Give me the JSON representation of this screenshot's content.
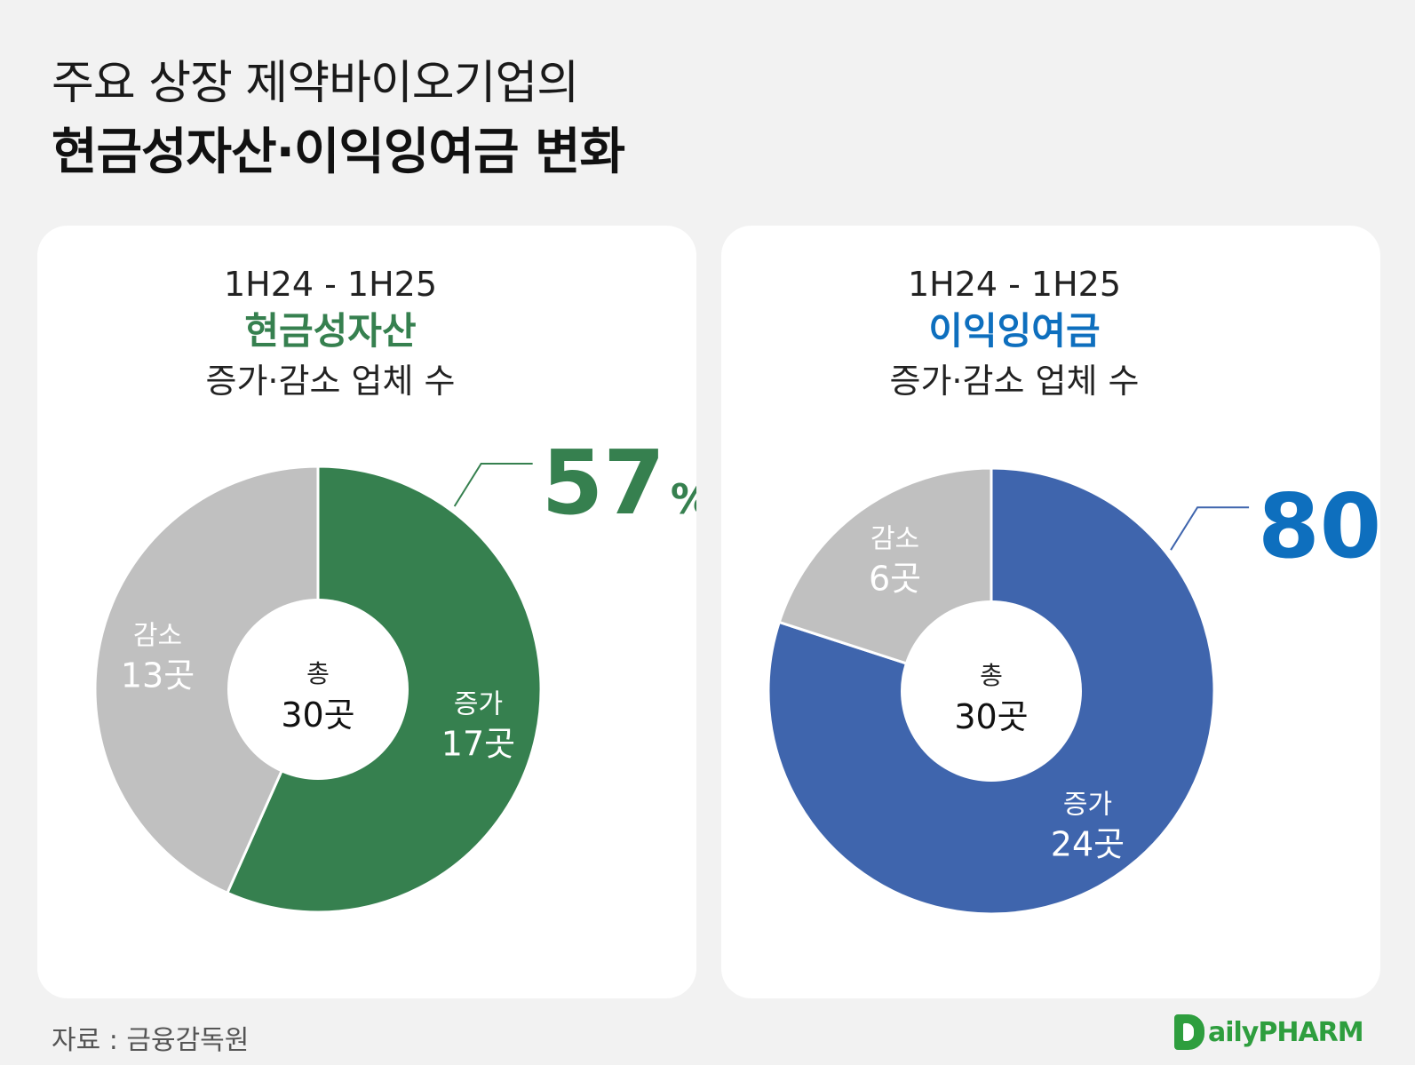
{
  "title": {
    "line1": "주요 상장 제약바이오기업의",
    "line2_bold": "현금성자산·이익잉여금",
    "line2_rest": " 변화"
  },
  "source": "자료 : 금융감독원",
  "logo": {
    "text": "ailyPHARM",
    "icon": "daily-pharm-logo-icon"
  },
  "colors": {
    "cash_green": "#36804f",
    "retained_blue": "#3f65ad",
    "decrease_gray": "#c0c0c0",
    "pct_green": "#36804f",
    "pct_blue": "#0e6fbe"
  },
  "chart_data": [
    {
      "type": "pie",
      "period": "1H24 - 1H25",
      "metric": "현금성자산",
      "subtitle": "증가·감소 업체 수",
      "center_label": "총",
      "center_value": "30곳",
      "highlight_value": "57",
      "highlight_unit": "%",
      "slices": [
        {
          "label": "증가",
          "value": 17,
          "value_label": "17곳"
        },
        {
          "label": "감소",
          "value": 13,
          "value_label": "13곳"
        }
      ]
    },
    {
      "type": "pie",
      "period": "1H24 - 1H25",
      "metric": "이익잉여금",
      "subtitle": "증가·감소 업체 수",
      "center_label": "총",
      "center_value": "30곳",
      "highlight_value": "80",
      "highlight_unit": "%",
      "slices": [
        {
          "label": "증가",
          "value": 24,
          "value_label": "24곳"
        },
        {
          "label": "감소",
          "value": 6,
          "value_label": "6곳"
        }
      ]
    }
  ]
}
